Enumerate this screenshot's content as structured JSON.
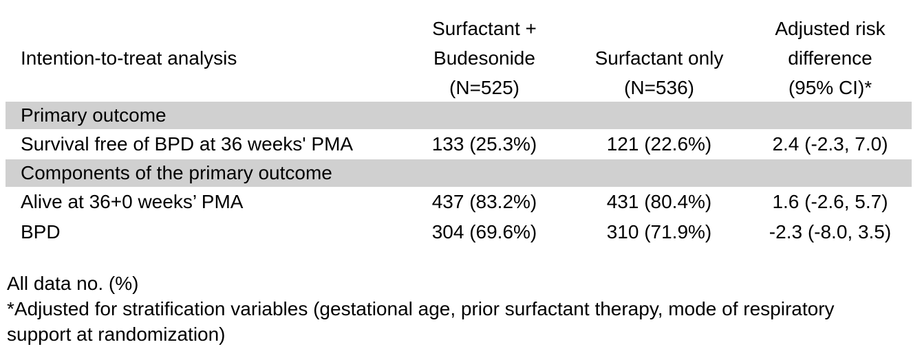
{
  "colors": {
    "section_band": "#d0d0d0",
    "text": "#000000",
    "background": "#ffffff"
  },
  "table": {
    "row_header": "Intention-to-treat analysis",
    "columns": [
      {
        "lines": [
          "Surfactant +",
          "Budesonide",
          "(N=525)"
        ]
      },
      {
        "lines": [
          "Surfactant only",
          "(N=536)"
        ]
      },
      {
        "lines": [
          "Adjusted risk",
          "difference",
          "(95% CI)*"
        ]
      }
    ],
    "rows": [
      {
        "type": "section",
        "label": "Primary outcome"
      },
      {
        "type": "data",
        "label": "Survival free of BPD at 36 weeks' PMA",
        "values": [
          "133 (25.3%)",
          "121 (22.6%)",
          "2.4 (-2.3, 7.0)"
        ]
      },
      {
        "type": "section",
        "label": "Components of the primary outcome"
      },
      {
        "type": "data",
        "label": "Alive at 36+0 weeks’ PMA",
        "values": [
          "437 (83.2%)",
          "431 (80.4%)",
          "1.6 (-2.6, 5.7)"
        ]
      },
      {
        "type": "data",
        "label": "BPD",
        "values": [
          "304 (69.6%)",
          "310 (71.9%)",
          "-2.3 (-8.0, 3.5)"
        ]
      }
    ]
  },
  "footnotes": {
    "lines": [
      "All data no. (%)",
      "*Adjusted for stratification variables (gestational age, prior surfactant therapy, mode of respiratory",
      "support at randomization)"
    ]
  }
}
